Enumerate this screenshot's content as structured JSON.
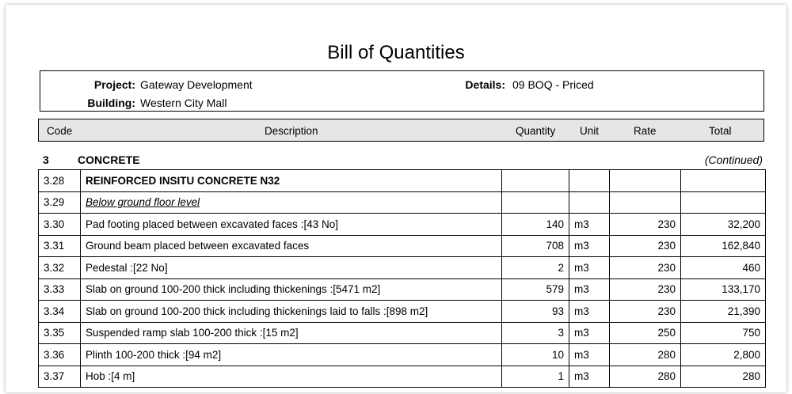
{
  "title": "Bill of Quantities",
  "info": {
    "project_label": "Project:",
    "project_value": "Gateway Development",
    "building_label": "Building:",
    "building_value": "Western City Mall",
    "details_label": "Details:",
    "details_value": "09 BOQ - Priced"
  },
  "columns": {
    "code": "Code",
    "description": "Description",
    "quantity": "Quantity",
    "unit": "Unit",
    "rate": "Rate",
    "total": "Total"
  },
  "section": {
    "number": "3",
    "name": "CONCRETE",
    "note": "(Continued)"
  },
  "rows": [
    {
      "code": "3.28",
      "description": "REINFORCED INSITU CONCRETE N32",
      "quantity": "",
      "unit": "",
      "rate": "",
      "total": "",
      "style": "bold"
    },
    {
      "code": "3.29",
      "description": "Below ground floor level",
      "quantity": "",
      "unit": "",
      "rate": "",
      "total": "",
      "style": "ital"
    },
    {
      "code": "3.30",
      "description": "Pad footing placed between excavated faces :[43 No]",
      "quantity": "140",
      "unit": "m3",
      "rate": "230",
      "total": "32,200",
      "style": ""
    },
    {
      "code": "3.31",
      "description": "Ground beam placed between excavated faces",
      "quantity": "708",
      "unit": "m3",
      "rate": "230",
      "total": "162,840",
      "style": ""
    },
    {
      "code": "3.32",
      "description": "Pedestal :[22 No]",
      "quantity": "2",
      "unit": "m3",
      "rate": "230",
      "total": "460",
      "style": ""
    },
    {
      "code": "3.33",
      "description": "Slab on ground 100-200 thick including thickenings :[5471 m2]",
      "quantity": "579",
      "unit": "m3",
      "rate": "230",
      "total": "133,170",
      "style": ""
    },
    {
      "code": "3.34",
      "description": "Slab on ground 100-200 thick including thickenings laid to falls :[898 m2]",
      "quantity": "93",
      "unit": "m3",
      "rate": "230",
      "total": "21,390",
      "style": ""
    },
    {
      "code": "3.35",
      "description": "Suspended ramp slab 100-200 thick :[15 m2]",
      "quantity": "3",
      "unit": "m3",
      "rate": "250",
      "total": "750",
      "style": ""
    },
    {
      "code": "3.36",
      "description": "Plinth 100-200 thick :[94 m2]",
      "quantity": "10",
      "unit": "m3",
      "rate": "280",
      "total": "2,800",
      "style": ""
    },
    {
      "code": "3.37",
      "description": "Hob :[4 m]",
      "quantity": "1",
      "unit": "m3",
      "rate": "280",
      "total": "280",
      "style": ""
    }
  ]
}
